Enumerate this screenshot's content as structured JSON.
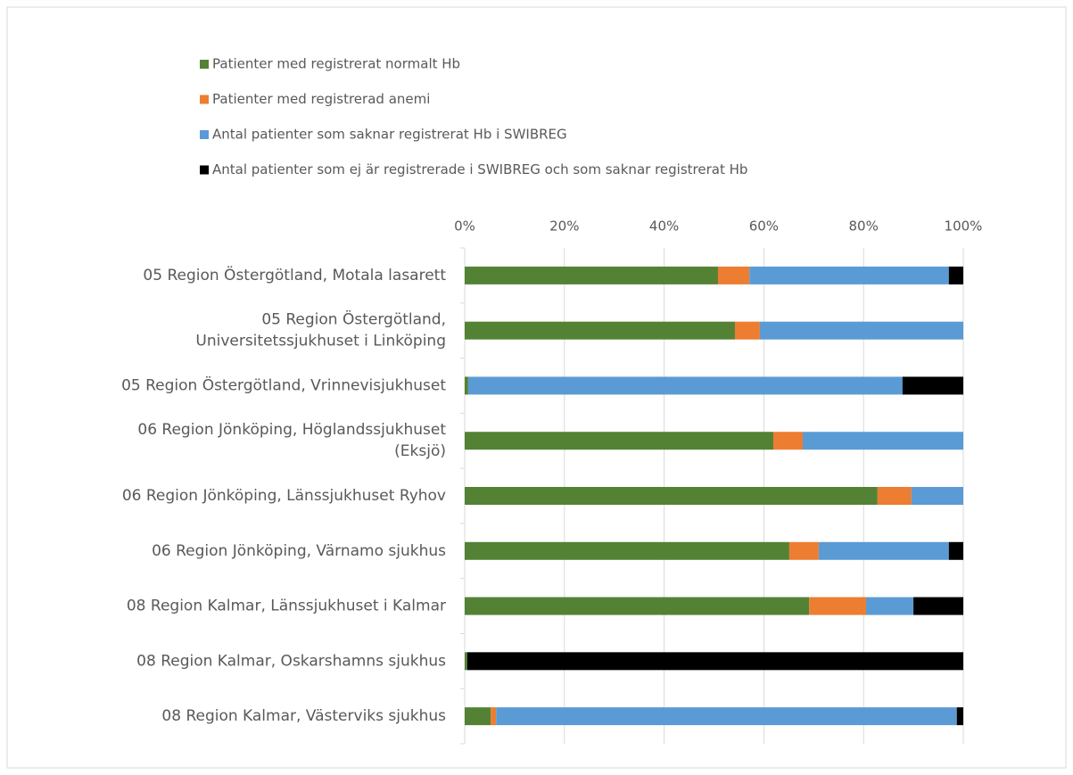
{
  "chart_data": {
    "type": "stacked_barh",
    "categories": [
      "05 Region Östergötland, Motala lasarett",
      "05 Region Östergötland,\nUniversitetssjukhuset i Linköping",
      "05 Region Östergötland, Vrinnevisjukhuset",
      "06 Region Jönköping, Höglandssjukhuset\n(Eksjö)",
      "06 Region Jönköping, Länssjukhuset Ryhov",
      "06 Region Jönköping, Värnamo sjukhus",
      "08 Region Kalmar, Länssjukhuset i Kalmar",
      "08 Region Kalmar, Oskarshamns sjukhus",
      "08 Region Kalmar, Västerviks sjukhus"
    ],
    "series": [
      {
        "name": "Patienter med registrerat normalt Hb",
        "color": "#548235",
        "values": [
          50.8,
          54.2,
          0.7,
          61.9,
          82.8,
          65.1,
          69.1,
          0.5,
          5.2
        ]
      },
      {
        "name": "Patienter med registrerad anemi",
        "color": "#ed7d31",
        "values": [
          6.3,
          5.0,
          0,
          5.9,
          6.8,
          5.9,
          11.4,
          0,
          1.1
        ]
      },
      {
        "name": "Antal patienter som saknar registrerat Hb i SWIBREG",
        "color": "#5b9bd5",
        "values": [
          40.0,
          40.8,
          87.1,
          32.2,
          10.4,
          26.1,
          9.5,
          0,
          92.4
        ]
      },
      {
        "name": "Antal patienter som ej är registrerade i SWIBREG och som saknar registrerat Hb",
        "color": "#000000",
        "values": [
          2.9,
          0,
          12.2,
          0,
          0,
          2.9,
          10.0,
          99.5,
          1.3
        ]
      }
    ],
    "xlim": [
      0,
      100
    ],
    "xticks": [
      {
        "value": 0,
        "label": "0%"
      },
      {
        "value": 20,
        "label": "20%"
      },
      {
        "value": 40,
        "label": "40%"
      },
      {
        "value": 60,
        "label": "60%"
      },
      {
        "value": 80,
        "label": "80%"
      },
      {
        "value": 100,
        "label": "100%"
      }
    ],
    "grid": true
  }
}
